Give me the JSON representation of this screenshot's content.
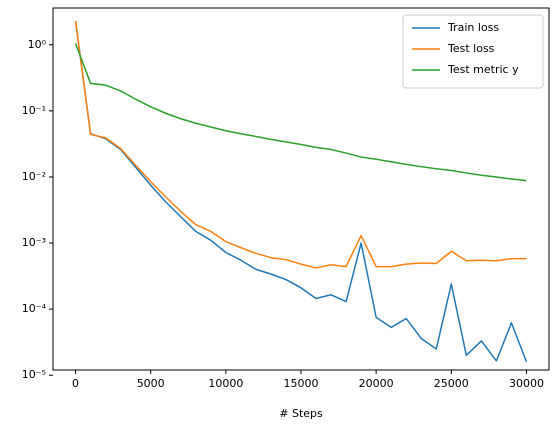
{
  "chart_data": {
    "type": "line",
    "xlabel": "# Steps",
    "log_y": true,
    "legend": "upper right",
    "x": [
      0,
      1000,
      2000,
      3000,
      4000,
      5000,
      6000,
      7000,
      8000,
      9000,
      10000,
      11000,
      12000,
      13000,
      14000,
      15000,
      16000,
      17000,
      18000,
      19000,
      20000,
      21000,
      22000,
      23000,
      24000,
      25000,
      26000,
      27000,
      28000,
      29000,
      30000
    ],
    "series": [
      {
        "name": "Train loss",
        "color": "#1f77b4",
        "values": [
          2.3,
          0.045,
          0.038,
          0.026,
          0.014,
          0.0075,
          0.0042,
          0.0025,
          0.0015,
          0.0011,
          0.00072,
          0.00055,
          0.0004,
          0.00034,
          0.00028,
          0.00021,
          0.000145,
          0.000165,
          0.00013,
          0.001,
          7.5e-05,
          5.3e-05,
          7.2e-05,
          3.6e-05,
          2.5e-05,
          0.00024,
          2e-05,
          3.3e-05,
          1.65e-05,
          6.2e-05,
          1.6e-05
        ]
      },
      {
        "name": "Test loss",
        "color": "#ff7f0e",
        "values": [
          2.3,
          0.044,
          0.039,
          0.027,
          0.015,
          0.0085,
          0.005,
          0.003,
          0.0019,
          0.0015,
          0.00105,
          0.00085,
          0.0007,
          0.0006,
          0.00056,
          0.00048,
          0.00042,
          0.00047,
          0.00044,
          0.0013,
          0.00044,
          0.00044,
          0.00048,
          0.0005,
          0.00049,
          0.00075,
          0.00054,
          0.00055,
          0.00054,
          0.00058,
          0.00058
        ]
      },
      {
        "name": "Test metric y",
        "color": "#2ca02c",
        "values": [
          1.05,
          0.26,
          0.245,
          0.2,
          0.15,
          0.115,
          0.092,
          0.076,
          0.065,
          0.057,
          0.05,
          0.045,
          0.041,
          0.037,
          0.034,
          0.031,
          0.028,
          0.026,
          0.023,
          0.02,
          0.0185,
          0.017,
          0.0155,
          0.0143,
          0.0133,
          0.0125,
          0.0115,
          0.0106,
          0.01,
          0.0093,
          0.0088
        ]
      }
    ],
    "xlim": [
      -1500,
      31500
    ],
    "xticks": [
      0,
      5000,
      10000,
      15000,
      20000,
      25000,
      30000
    ],
    "ylim": [
      1.2e-05,
      3.6
    ],
    "yticks": [
      {
        "value": 1,
        "label": "10⁰"
      },
      {
        "value": 0.1,
        "label": "10⁻¹"
      },
      {
        "value": 0.01,
        "label": "10⁻²"
      },
      {
        "value": 0.001,
        "label": "10⁻³"
      },
      {
        "value": 0.0001,
        "label": "10⁻⁴"
      },
      {
        "value": 1e-05,
        "label": "10⁻⁵"
      }
    ]
  }
}
